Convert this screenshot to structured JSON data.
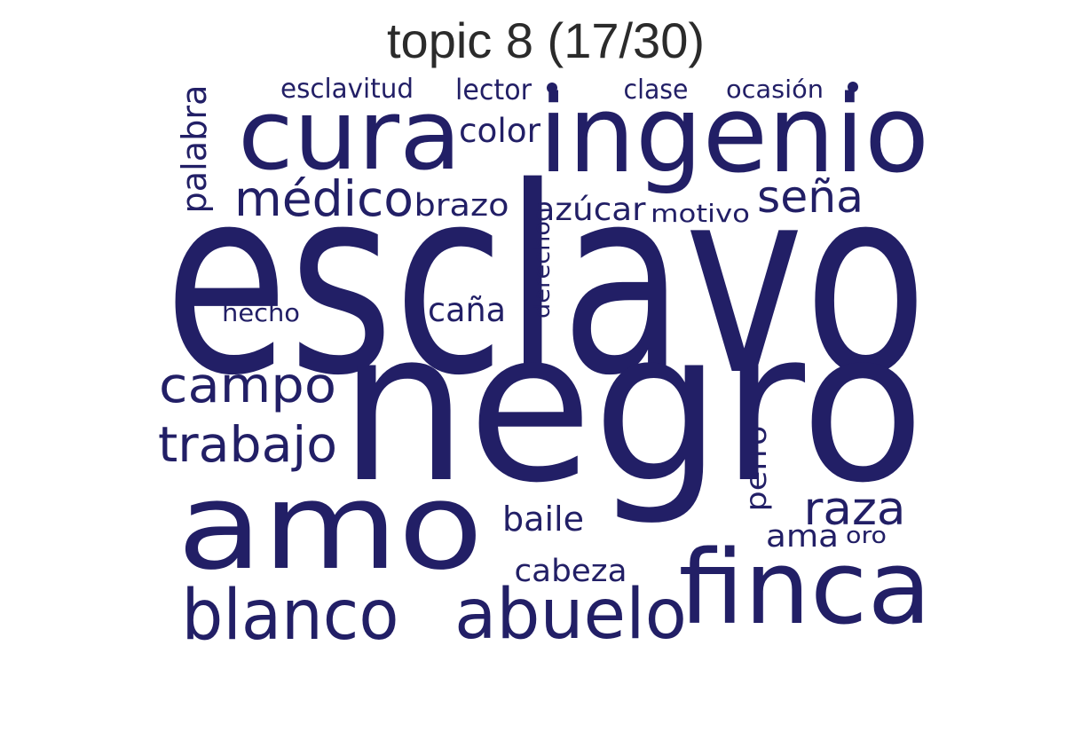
{
  "title": "topic 8 (17/30)",
  "color": "#221f66",
  "words": [
    {
      "text": "esclavo"
    },
    {
      "text": "negro"
    },
    {
      "text": "amo"
    },
    {
      "text": "ingenio"
    },
    {
      "text": "cura"
    },
    {
      "text": "finca"
    },
    {
      "text": "blanco"
    },
    {
      "text": "abuelo"
    },
    {
      "text": "campo"
    },
    {
      "text": "trabajo"
    },
    {
      "text": "médico"
    },
    {
      "text": "raza"
    },
    {
      "text": "seña"
    },
    {
      "text": "palabra"
    },
    {
      "text": "color"
    },
    {
      "text": "brazo"
    },
    {
      "text": "azúcar"
    },
    {
      "text": "caña"
    },
    {
      "text": "baile"
    },
    {
      "text": "cabeza"
    },
    {
      "text": "perro"
    },
    {
      "text": "derecho"
    },
    {
      "text": "motivo"
    },
    {
      "text": "hecho"
    },
    {
      "text": "ama"
    },
    {
      "text": "oro"
    },
    {
      "text": "lector"
    },
    {
      "text": "clase"
    },
    {
      "text": "ocasión"
    },
    {
      "text": "esclavitud"
    }
  ]
}
